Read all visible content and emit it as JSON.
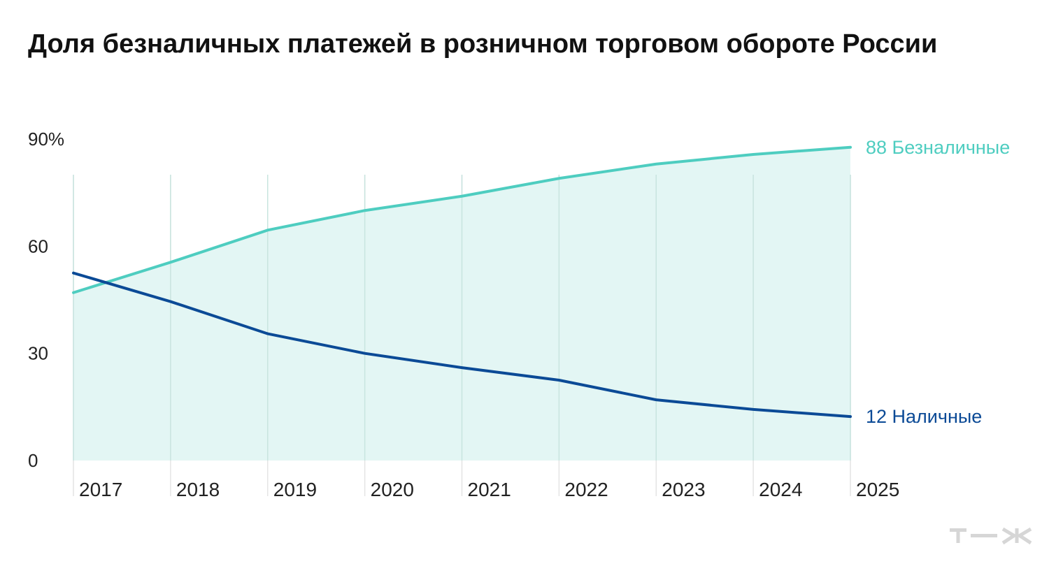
{
  "chart_data": {
    "type": "line",
    "title": "Доля безналичных платежей в розничном торговом обороте России",
    "x": [
      "2017",
      "2018",
      "2019",
      "2020",
      "2021",
      "2022",
      "2023",
      "2024",
      "2025"
    ],
    "ylim": [
      0,
      90
    ],
    "yticks": [
      {
        "value": 0,
        "label": "0"
      },
      {
        "value": 30,
        "label": "30"
      },
      {
        "value": 60,
        "label": "60"
      },
      {
        "value": 90,
        "label": "90%"
      }
    ],
    "grid": "vertical",
    "series": [
      {
        "name": "Безналичные",
        "end_label": "88 Безналичные",
        "color": "#4ecdc0",
        "fill_color": "#e3f6f4",
        "filled": true,
        "values": [
          47,
          55.5,
          64.5,
          70,
          74,
          79,
          83,
          85.7,
          87.7
        ]
      },
      {
        "name": "Наличные",
        "end_label": "12 Наличные",
        "color": "#0b4a96",
        "filled": false,
        "values": [
          52.5,
          44.5,
          35.5,
          30,
          26,
          22.5,
          17,
          14.3,
          12.3
        ]
      }
    ]
  },
  "branding": {
    "logo": "т—ж"
  }
}
